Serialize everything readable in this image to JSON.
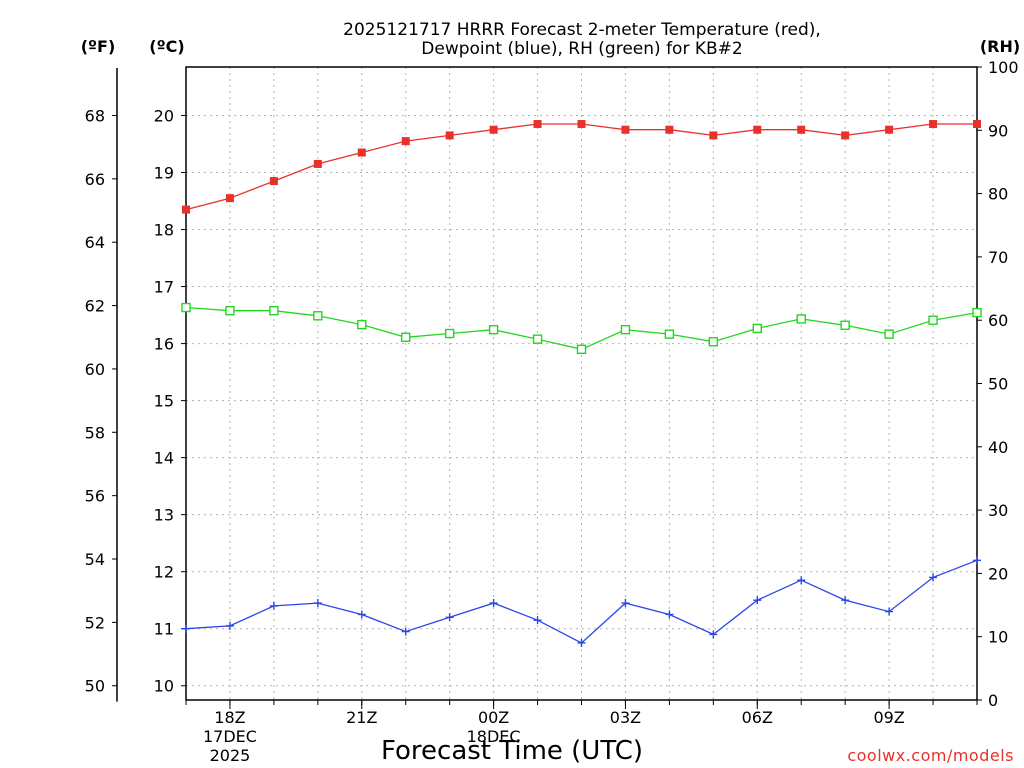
{
  "chart_data": {
    "type": "line",
    "title_line1": "2025121717 HRRR Forecast 2-meter Temperature (red),",
    "title_line2": "Dewpoint (blue), RH (green) for KB#2",
    "xlabel": "Forecast Time (UTC)",
    "credit": "coolwx.com/models",
    "units": {
      "f": "(ºF)",
      "c": "(ºC)",
      "rh": "(RH)"
    },
    "colors": {
      "temperature": "#e8312a",
      "dewpoint": "#2b46e8",
      "rh": "#22d81f"
    },
    "hours": [
      0,
      1,
      2,
      3,
      4,
      5,
      6,
      7,
      8,
      9,
      10,
      11,
      12,
      13,
      14,
      15,
      16,
      17,
      18
    ],
    "xlim": [
      0,
      18
    ],
    "x_ticks": [
      {
        "hour": 1,
        "label": "18Z",
        "sub1": "17DEC",
        "sub2": "2025"
      },
      {
        "hour": 4,
        "label": "21Z",
        "sub1": "",
        "sub2": ""
      },
      {
        "hour": 7,
        "label": "00Z",
        "sub1": "18DEC",
        "sub2": ""
      },
      {
        "hour": 10,
        "label": "03Z",
        "sub1": "",
        "sub2": ""
      },
      {
        "hour": 13,
        "label": "06Z",
        "sub1": "",
        "sub2": ""
      },
      {
        "hour": 16,
        "label": "09Z",
        "sub1": "",
        "sub2": ""
      }
    ],
    "celsius_axis": {
      "lim": [
        9.75,
        20.85
      ],
      "ticks": [
        10,
        11,
        12,
        13,
        14,
        15,
        16,
        17,
        18,
        19,
        20
      ]
    },
    "fahrenheit_ticks": [
      50,
      52,
      54,
      56,
      58,
      60,
      62,
      64,
      66,
      68
    ],
    "rh_axis": {
      "lim": [
        0,
        100
      ],
      "ticks": [
        0,
        10,
        20,
        30,
        40,
        50,
        60,
        70,
        80,
        90,
        100
      ]
    },
    "series": [
      {
        "name": "2-meter Temperature (°C)",
        "axis": "c",
        "marker": "filled-square",
        "values": [
          18.35,
          18.55,
          18.85,
          19.15,
          19.35,
          19.55,
          19.65,
          19.75,
          19.85,
          19.85,
          19.75,
          19.75,
          19.65,
          19.75,
          19.75,
          19.65,
          19.75,
          19.85,
          19.85
        ]
      },
      {
        "name": "Dewpoint (°C)",
        "axis": "c",
        "marker": "plus",
        "values": [
          11.0,
          11.05,
          11.4,
          11.45,
          11.25,
          10.95,
          11.2,
          11.45,
          11.15,
          10.75,
          11.45,
          11.25,
          10.9,
          11.5,
          11.85,
          11.5,
          11.3,
          11.9,
          12.2
        ]
      },
      {
        "name": "RH (%)",
        "axis": "rh",
        "marker": "open-square",
        "values": [
          62,
          61.5,
          61.5,
          60.7,
          59.3,
          57.3,
          57.9,
          58.5,
          57.0,
          55.4,
          58.5,
          57.8,
          56.6,
          58.7,
          60.2,
          59.2,
          57.8,
          60.0,
          61.2
        ]
      }
    ]
  }
}
